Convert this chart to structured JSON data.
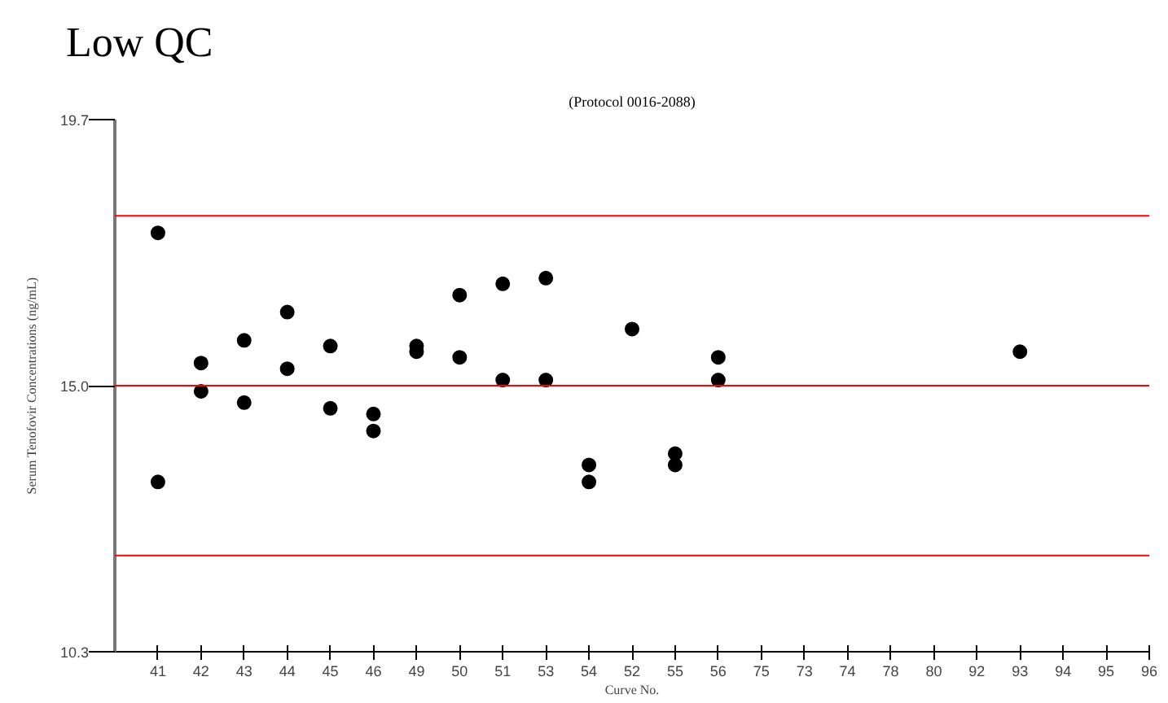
{
  "chart_data": {
    "type": "scatter",
    "title": "Low QC",
    "subtitle": "(Protocol 0016-2088)",
    "xlabel": "Curve No.",
    "ylabel": "Serum Tenofovir Concentrations (ng/mL)",
    "categories": [
      "41",
      "42",
      "43",
      "44",
      "45",
      "46",
      "49",
      "50",
      "51",
      "53",
      "54",
      "52",
      "55",
      "56",
      "75",
      "73",
      "74",
      "78",
      "80",
      "92",
      "93",
      "94",
      "95",
      "96"
    ],
    "series": [
      {
        "color": "#000000",
        "values": [
          17.7,
          15.4,
          15.8,
          16.3,
          15.7,
          14.5,
          15.7,
          16.6,
          16.8,
          16.9,
          13.6,
          16.0,
          13.8,
          15.5,
          null,
          null,
          null,
          null,
          null,
          null,
          15.6,
          null,
          null,
          null
        ]
      },
      {
        "color": "#000000",
        "values": [
          13.3,
          14.9,
          14.7,
          15.3,
          14.6,
          14.2,
          15.6,
          15.5,
          15.1,
          15.1,
          13.3,
          null,
          13.6,
          15.1,
          null,
          null,
          null,
          null,
          null,
          null,
          null,
          null,
          null,
          null
        ]
      }
    ],
    "ylim": [
      10.3,
      19.7
    ],
    "yticks": [
      10.3,
      {
        "value": 15,
        "label": "15.0"
      },
      19.7
    ],
    "ref_lines": [
      {
        "axis": "y",
        "value": 18.0,
        "color": "#ff0000"
      },
      {
        "axis": "y",
        "value": 15.0,
        "color": "#ff0000"
      },
      {
        "axis": "y",
        "value": 12.0,
        "color": "#ff0000"
      }
    ],
    "grid": false,
    "marker": "circle"
  }
}
